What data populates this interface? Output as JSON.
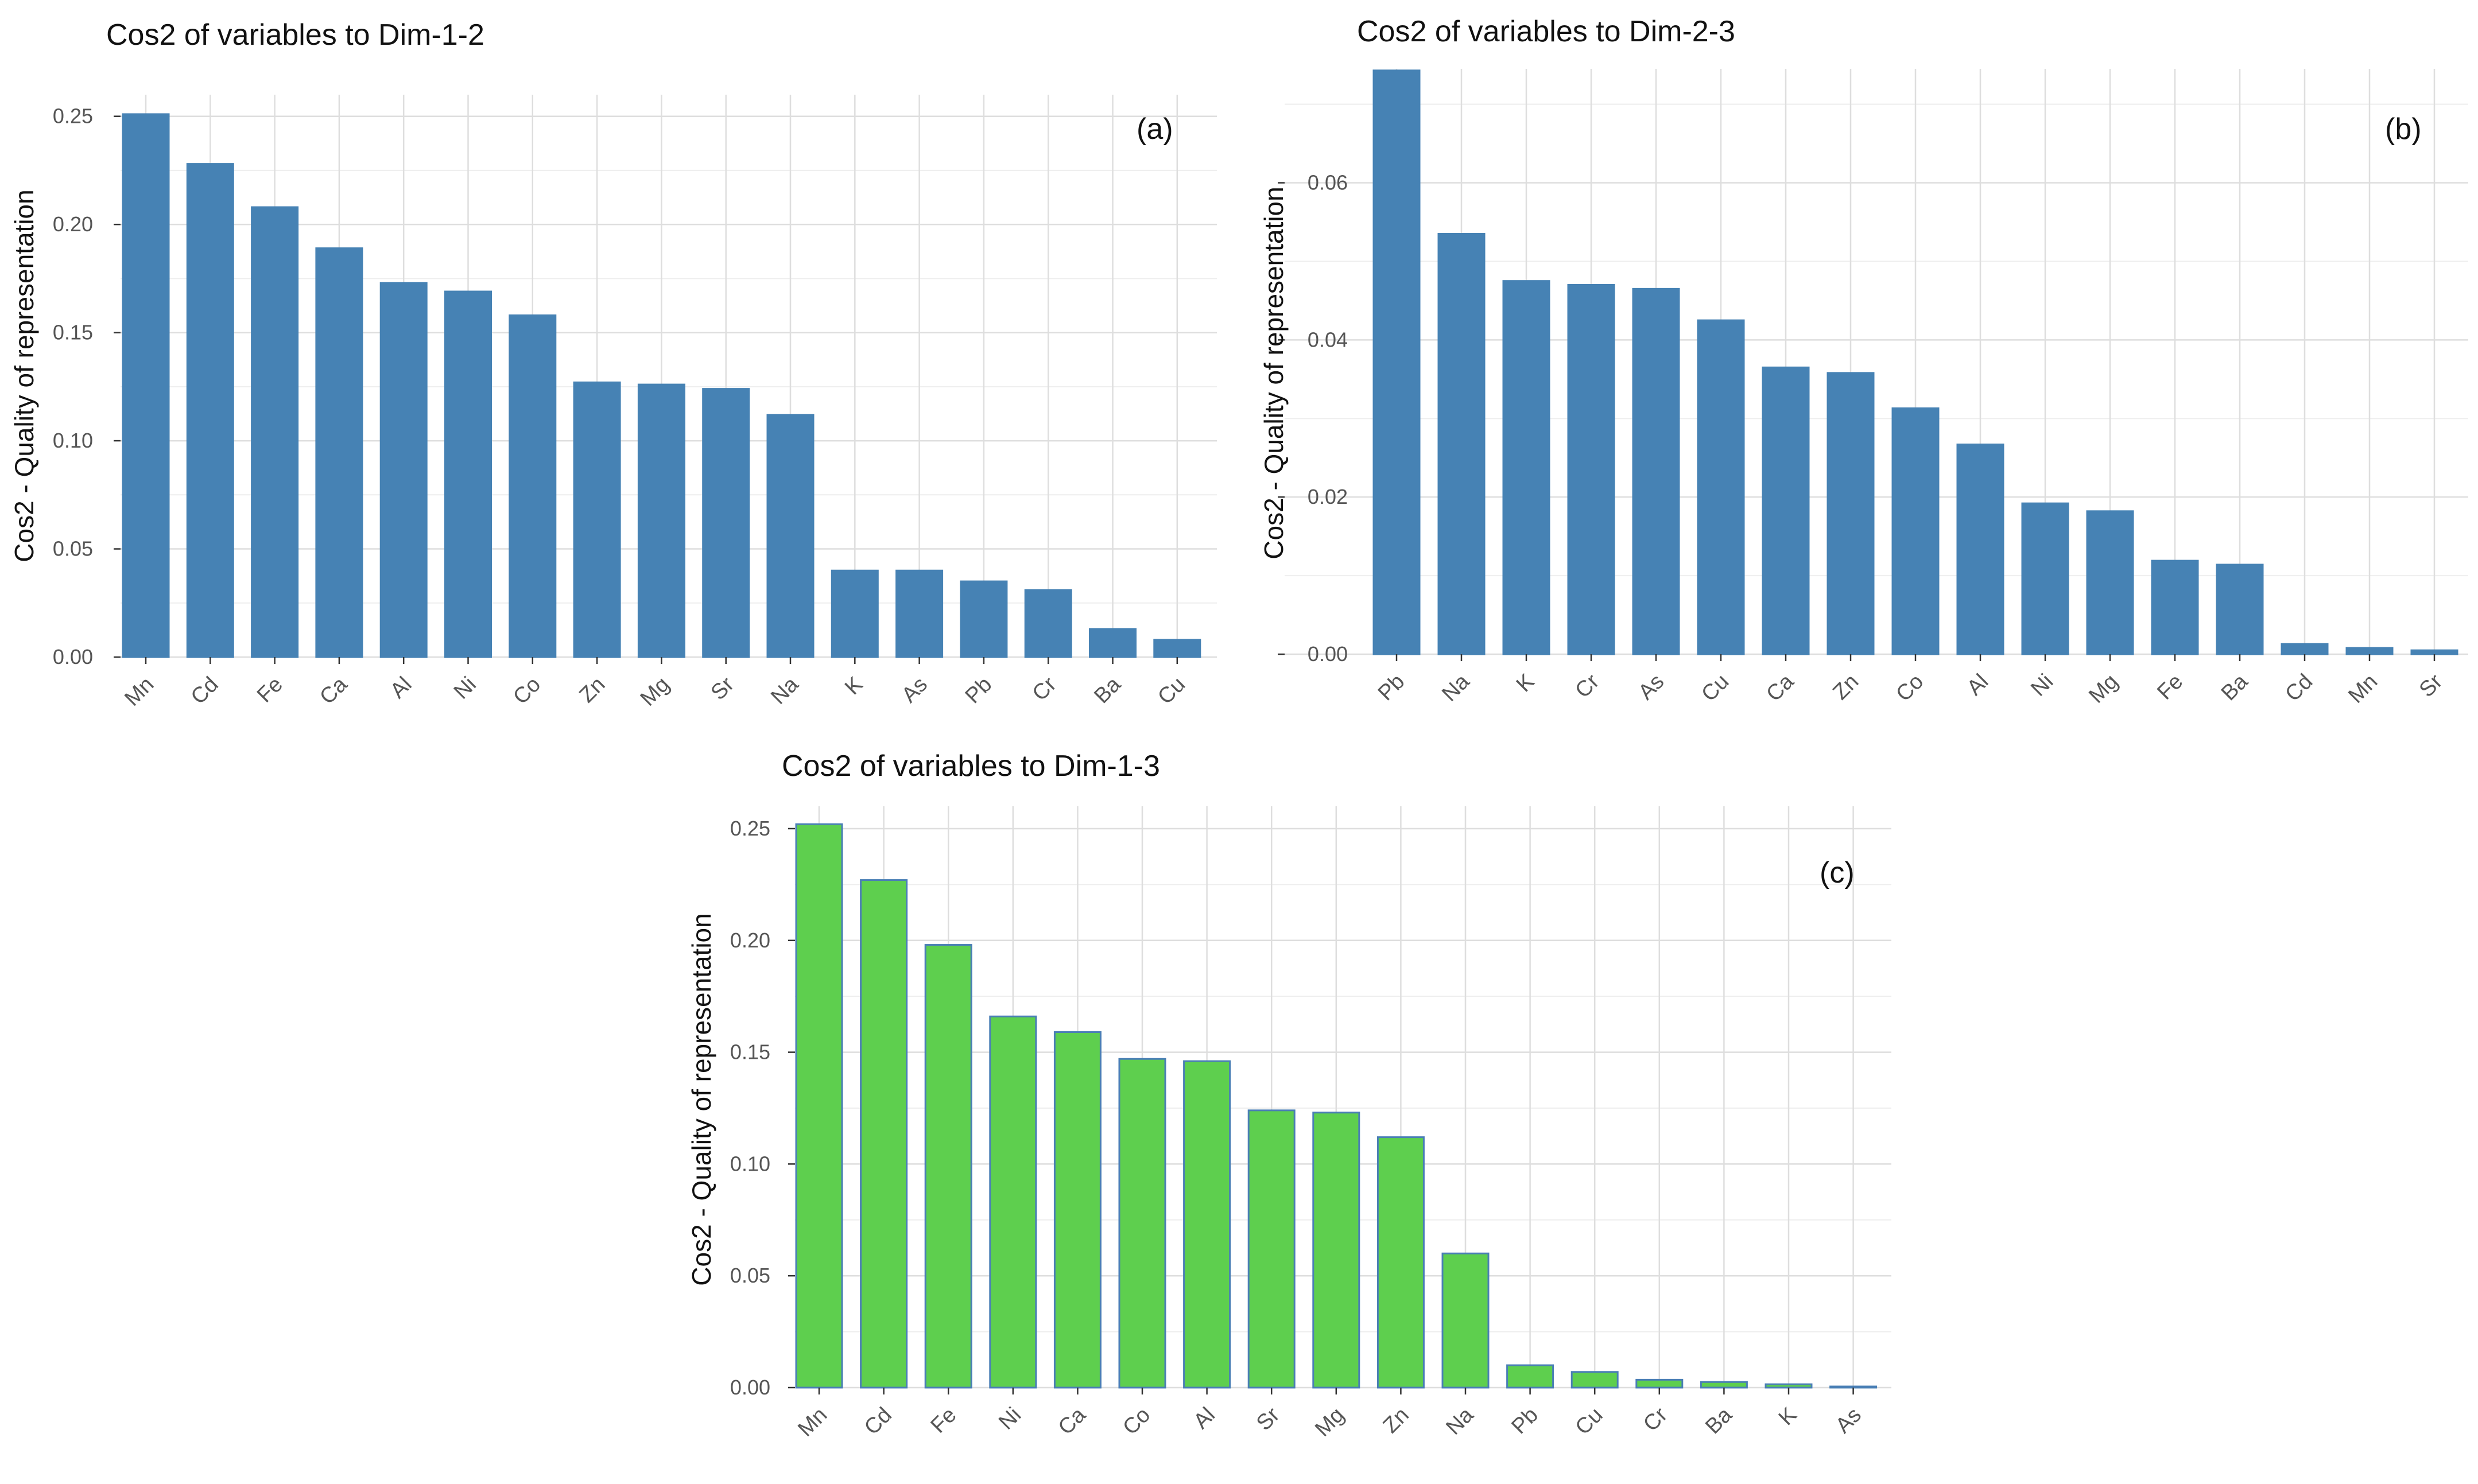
{
  "chart_data": [
    {
      "id": "a",
      "type": "bar",
      "title": "Cos2 of variables to Dim-1-2",
      "panel_label": "(a)",
      "ylabel": "Cos2 - Quality of representation",
      "xlabel": "",
      "ylim": [
        0,
        0.26
      ],
      "yticks": [
        0,
        0.05,
        0.1,
        0.15,
        0.2,
        0.25
      ],
      "ytick_labels": [
        "0.00",
        "0.05",
        "0.10",
        "0.15",
        "0.20",
        "0.25"
      ],
      "categories": [
        "Mn",
        "Cd",
        "Fe",
        "Ca",
        "Al",
        "Ni",
        "Co",
        "Zn",
        "Mg",
        "Sr",
        "Na",
        "K",
        "As",
        "Pb",
        "Cr",
        "Ba",
        "Cu"
      ],
      "values": [
        0.251,
        0.228,
        0.208,
        0.189,
        0.173,
        0.169,
        0.158,
        0.127,
        0.126,
        0.124,
        0.112,
        0.04,
        0.04,
        0.035,
        0.031,
        0.013,
        0.008
      ],
      "bar_color": "#4682b4",
      "bar_outline": "#4682b4",
      "grid": true
    },
    {
      "id": "b",
      "type": "bar",
      "title": "Cos2 of variables to Dim-2-3",
      "panel_label": "(b)",
      "ylabel": "Cos2 - Quality of representation",
      "xlabel": "",
      "ylim": [
        0,
        0.0745
      ],
      "yticks": [
        0,
        0.02,
        0.04,
        0.06
      ],
      "ytick_labels": [
        "0.00",
        "0.02",
        "0.04",
        "0.06"
      ],
      "categories": [
        "Pb",
        "Na",
        "K",
        "Cr",
        "As",
        "Cu",
        "Ca",
        "Zn",
        "Co",
        "Al",
        "Ni",
        "Mg",
        "Fe",
        "Ba",
        "Cd",
        "Mn",
        "Sr"
      ],
      "values": [
        0.0743,
        0.0535,
        0.0475,
        0.047,
        0.0465,
        0.0425,
        0.0365,
        0.0358,
        0.0313,
        0.0267,
        0.0192,
        0.0182,
        0.0119,
        0.0114,
        0.0013,
        0.0008,
        0.0005
      ],
      "bar_color": "#4682b4",
      "bar_outline": "#4682b4",
      "grid": true
    },
    {
      "id": "c",
      "type": "bar",
      "title": "Cos2 of variables to Dim-1-3",
      "panel_label": "(c)",
      "ylabel": "Cos2 - Quality of representation",
      "xlabel": "",
      "ylim": [
        0,
        0.26
      ],
      "yticks": [
        0,
        0.05,
        0.1,
        0.15,
        0.2,
        0.25
      ],
      "ytick_labels": [
        "0.00",
        "0.05",
        "0.10",
        "0.15",
        "0.20",
        "0.25"
      ],
      "categories": [
        "Mn",
        "Cd",
        "Fe",
        "Ni",
        "Ca",
        "Co",
        "Al",
        "Sr",
        "Mg",
        "Zn",
        "Na",
        "Pb",
        "Cu",
        "Cr",
        "Ba",
        "K",
        "As"
      ],
      "values": [
        0.252,
        0.227,
        0.198,
        0.166,
        0.159,
        0.147,
        0.146,
        0.124,
        0.123,
        0.112,
        0.06,
        0.01,
        0.007,
        0.0035,
        0.0025,
        0.0015,
        0.0005
      ],
      "bar_color": "#5ecf4e",
      "bar_outline": "#4a7fb5",
      "grid": true
    }
  ]
}
